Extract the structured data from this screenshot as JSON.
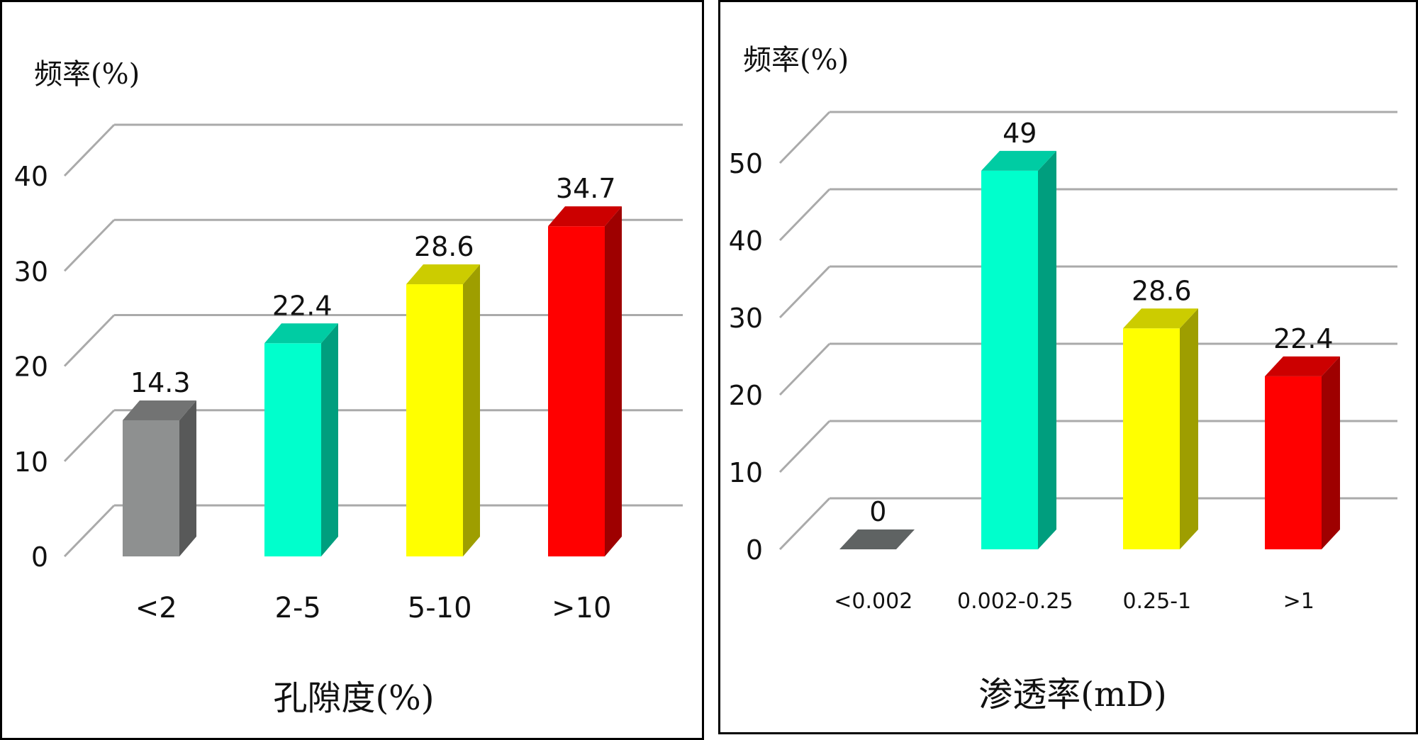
{
  "charts": [
    {
      "type": "bar",
      "ylabel": "频率(%)",
      "xlabel": "孔隙度(%)",
      "categories": [
        "<2",
        "2-5",
        "5-10",
        ">10"
      ],
      "values": [
        14.3,
        22.4,
        28.6,
        34.7
      ],
      "value_labels": [
        "14.3",
        "22.4",
        "28.6",
        "34.7"
      ],
      "yticks": [
        0,
        10,
        20,
        30,
        40
      ],
      "ylim": [
        0,
        40
      ],
      "grid": true,
      "colors": [
        "#8e9090",
        "#00ffcc",
        "#ffff00",
        "#ff0000"
      ]
    },
    {
      "type": "bar",
      "ylabel": "频率(%)",
      "xlabel": "渗透率(mD)",
      "categories": [
        "<0.002",
        "0.002-0.25",
        "0.25-1",
        ">1"
      ],
      "values": [
        0,
        49,
        28.6,
        22.4
      ],
      "value_labels": [
        "0",
        "49",
        "28.6",
        "22.4"
      ],
      "yticks": [
        0,
        10,
        20,
        30,
        40,
        50
      ],
      "ylim": [
        0,
        50
      ],
      "grid": true,
      "colors": [
        "#8e9090",
        "#00ffcc",
        "#ffff00",
        "#ff0000"
      ]
    }
  ]
}
